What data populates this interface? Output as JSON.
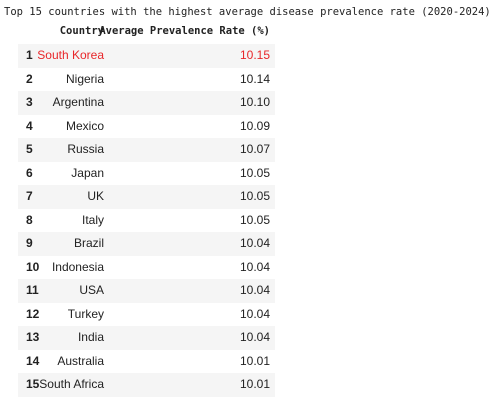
{
  "title": "Top 15 countries with the highest average disease prevalence rate (2020-2024):",
  "table": {
    "columns": [
      "Country",
      "Average Prevalence Rate (%)"
    ],
    "rows": [
      [
        1,
        "South Korea",
        "10.15"
      ],
      [
        2,
        "Nigeria",
        "10.14"
      ],
      [
        3,
        "Argentina",
        "10.10"
      ],
      [
        4,
        "Mexico",
        "10.09"
      ],
      [
        5,
        "Russia",
        "10.07"
      ],
      [
        6,
        "Japan",
        "10.05"
      ],
      [
        7,
        "UK",
        "10.05"
      ],
      [
        8,
        "Italy",
        "10.05"
      ],
      [
        9,
        "Brazil",
        "10.04"
      ],
      [
        10,
        "Indonesia",
        "10.04"
      ],
      [
        11,
        "USA",
        "10.04"
      ],
      [
        12,
        "Turkey",
        "10.04"
      ],
      [
        13,
        "India",
        "10.04"
      ],
      [
        14,
        "Australia",
        "10.01"
      ],
      [
        15,
        "South Africa",
        "10.01"
      ]
    ]
  }
}
